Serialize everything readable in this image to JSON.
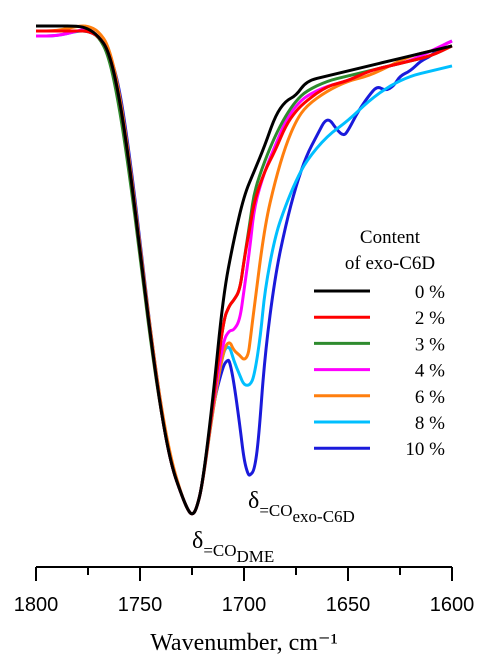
{
  "chart_data": {
    "type": "line",
    "xlabel": "Wavenumber, cm⁻¹",
    "xlim": [
      1800,
      1600
    ],
    "x_reversed": true,
    "y_axis_visible": false,
    "grid": false,
    "x_ticks": [
      1800,
      1750,
      1700,
      1650,
      1600
    ],
    "x_tick_labels": [
      "1800",
      "1750",
      "1700",
      "1650",
      "1600"
    ],
    "legend": {
      "title_lines": [
        "Content",
        "of exo-C6D"
      ],
      "placement": "right"
    },
    "annotations": [
      {
        "symbol": "δ",
        "subscript": "=CO",
        "subsub": "DME",
        "x": 1725
      },
      {
        "symbol": "δ",
        "subscript": "=CO",
        "subsub": "exo-C6D",
        "x": 1697
      }
    ],
    "series": [
      {
        "name": "0 %",
        "color": "#000000",
        "x": [
          1800,
          1790,
          1780,
          1775,
          1770,
          1765,
          1760,
          1755,
          1750,
          1745,
          1740,
          1735,
          1730,
          1727,
          1725,
          1723,
          1720,
          1715,
          1710,
          1705,
          1700,
          1695,
          1690,
          1685,
          1680,
          1675,
          1670,
          1660,
          1650,
          1640,
          1630,
          1620,
          1610,
          1600
        ],
        "y": [
          0.98,
          0.98,
          0.98,
          0.975,
          0.96,
          0.93,
          0.84,
          0.7,
          0.53,
          0.36,
          0.21,
          0.1,
          0.04,
          0.01,
          0.0,
          0.01,
          0.06,
          0.23,
          0.44,
          0.55,
          0.64,
          0.69,
          0.74,
          0.8,
          0.83,
          0.84,
          0.87,
          0.88,
          0.89,
          0.9,
          0.91,
          0.92,
          0.93,
          0.94
        ]
      },
      {
        "name": "2 %",
        "color": "#ff0000",
        "x": [
          1800,
          1790,
          1780,
          1775,
          1770,
          1765,
          1760,
          1755,
          1750,
          1745,
          1740,
          1735,
          1730,
          1727,
          1725,
          1723,
          1720,
          1715,
          1710,
          1707,
          1705,
          1702,
          1700,
          1697,
          1695,
          1690,
          1685,
          1680,
          1675,
          1670,
          1660,
          1650,
          1640,
          1630,
          1620,
          1610,
          1600
        ],
        "y": [
          0.97,
          0.97,
          0.97,
          0.97,
          0.96,
          0.93,
          0.84,
          0.7,
          0.53,
          0.36,
          0.21,
          0.1,
          0.04,
          0.01,
          0.0,
          0.01,
          0.06,
          0.22,
          0.39,
          0.42,
          0.43,
          0.45,
          0.51,
          0.58,
          0.63,
          0.69,
          0.73,
          0.78,
          0.81,
          0.83,
          0.86,
          0.87,
          0.89,
          0.9,
          0.91,
          0.92,
          0.94
        ]
      },
      {
        "name": "3 %",
        "color": "#2e8b2e",
        "x": [
          1800,
          1790,
          1780,
          1775,
          1770,
          1765,
          1760,
          1755,
          1750,
          1745,
          1740,
          1735,
          1730,
          1727,
          1725,
          1723,
          1720,
          1715,
          1710,
          1707,
          1705,
          1702,
          1700,
          1697,
          1695,
          1690,
          1685,
          1680,
          1675,
          1670,
          1660,
          1650,
          1640,
          1630,
          1620,
          1610,
          1600
        ],
        "y": [
          0.97,
          0.97,
          0.97,
          0.97,
          0.96,
          0.92,
          0.82,
          0.68,
          0.52,
          0.35,
          0.21,
          0.1,
          0.04,
          0.01,
          0.0,
          0.01,
          0.06,
          0.22,
          0.39,
          0.42,
          0.43,
          0.45,
          0.51,
          0.59,
          0.65,
          0.71,
          0.76,
          0.8,
          0.83,
          0.85,
          0.87,
          0.88,
          0.89,
          0.9,
          0.91,
          0.92,
          0.94
        ]
      },
      {
        "name": "4 %",
        "color": "#ff00ff",
        "x": [
          1800,
          1790,
          1780,
          1775,
          1770,
          1765,
          1760,
          1755,
          1750,
          1745,
          1740,
          1735,
          1730,
          1727,
          1725,
          1723,
          1720,
          1715,
          1710,
          1707,
          1705,
          1702,
          1700,
          1697,
          1695,
          1690,
          1685,
          1680,
          1675,
          1670,
          1660,
          1650,
          1640,
          1630,
          1620,
          1610,
          1600
        ],
        "y": [
          0.96,
          0.96,
          0.97,
          0.975,
          0.96,
          0.93,
          0.84,
          0.7,
          0.53,
          0.36,
          0.21,
          0.1,
          0.04,
          0.01,
          0.0,
          0.01,
          0.06,
          0.22,
          0.35,
          0.37,
          0.37,
          0.39,
          0.45,
          0.54,
          0.62,
          0.69,
          0.74,
          0.79,
          0.82,
          0.84,
          0.86,
          0.87,
          0.89,
          0.9,
          0.91,
          0.93,
          0.95
        ]
      },
      {
        "name": "6 %",
        "color": "#ff7f0e",
        "x": [
          1800,
          1790,
          1780,
          1775,
          1770,
          1765,
          1760,
          1755,
          1750,
          1745,
          1740,
          1735,
          1730,
          1727,
          1725,
          1723,
          1720,
          1715,
          1710,
          1707,
          1705,
          1702,
          1700,
          1698,
          1697,
          1695,
          1690,
          1685,
          1680,
          1675,
          1670,
          1660,
          1650,
          1640,
          1630,
          1620,
          1610,
          1600
        ],
        "y": [
          0.97,
          0.97,
          0.98,
          0.98,
          0.97,
          0.94,
          0.85,
          0.71,
          0.54,
          0.37,
          0.22,
          0.11,
          0.04,
          0.01,
          0.0,
          0.01,
          0.06,
          0.21,
          0.33,
          0.35,
          0.33,
          0.32,
          0.31,
          0.32,
          0.35,
          0.42,
          0.58,
          0.67,
          0.74,
          0.79,
          0.82,
          0.85,
          0.87,
          0.88,
          0.9,
          0.92,
          0.93,
          0.94
        ]
      },
      {
        "name": "8 %",
        "color": "#00bfff",
        "x": [
          1800,
          1790,
          1780,
          1775,
          1770,
          1765,
          1760,
          1755,
          1750,
          1745,
          1740,
          1735,
          1730,
          1727,
          1725,
          1723,
          1720,
          1715,
          1710,
          1707,
          1705,
          1702,
          1700,
          1697,
          1695,
          1692,
          1690,
          1685,
          1680,
          1675,
          1670,
          1660,
          1650,
          1640,
          1630,
          1620,
          1610,
          1600
        ],
        "y": [
          0.96,
          0.96,
          0.97,
          0.97,
          0.96,
          0.93,
          0.84,
          0.7,
          0.53,
          0.36,
          0.21,
          0.1,
          0.04,
          0.01,
          0.0,
          0.01,
          0.06,
          0.21,
          0.33,
          0.34,
          0.31,
          0.28,
          0.26,
          0.26,
          0.28,
          0.36,
          0.45,
          0.56,
          0.62,
          0.67,
          0.71,
          0.76,
          0.79,
          0.83,
          0.86,
          0.88,
          0.89,
          0.9
        ]
      },
      {
        "name": "10 %",
        "color": "#1a1adb",
        "x": [
          1800,
          1790,
          1780,
          1775,
          1770,
          1765,
          1760,
          1755,
          1750,
          1745,
          1740,
          1735,
          1730,
          1727,
          1725,
          1723,
          1720,
          1715,
          1710,
          1708,
          1707,
          1705,
          1702,
          1700,
          1698,
          1697,
          1695,
          1693,
          1690,
          1685,
          1680,
          1675,
          1670,
          1665,
          1660,
          1655,
          1652,
          1650,
          1645,
          1640,
          1636,
          1632,
          1628,
          1625,
          1620,
          1615,
          1610,
          1605,
          1600
        ],
        "y": [
          0.97,
          0.97,
          0.97,
          0.97,
          0.96,
          0.93,
          0.86,
          0.72,
          0.55,
          0.37,
          0.22,
          0.1,
          0.04,
          0.01,
          0.0,
          0.01,
          0.06,
          0.22,
          0.3,
          0.31,
          0.31,
          0.27,
          0.18,
          0.11,
          0.08,
          0.08,
          0.09,
          0.15,
          0.32,
          0.48,
          0.58,
          0.66,
          0.72,
          0.76,
          0.8,
          0.77,
          0.76,
          0.77,
          0.81,
          0.84,
          0.86,
          0.85,
          0.86,
          0.88,
          0.89,
          0.91,
          0.92,
          0.94,
          0.95
        ]
      }
    ]
  }
}
